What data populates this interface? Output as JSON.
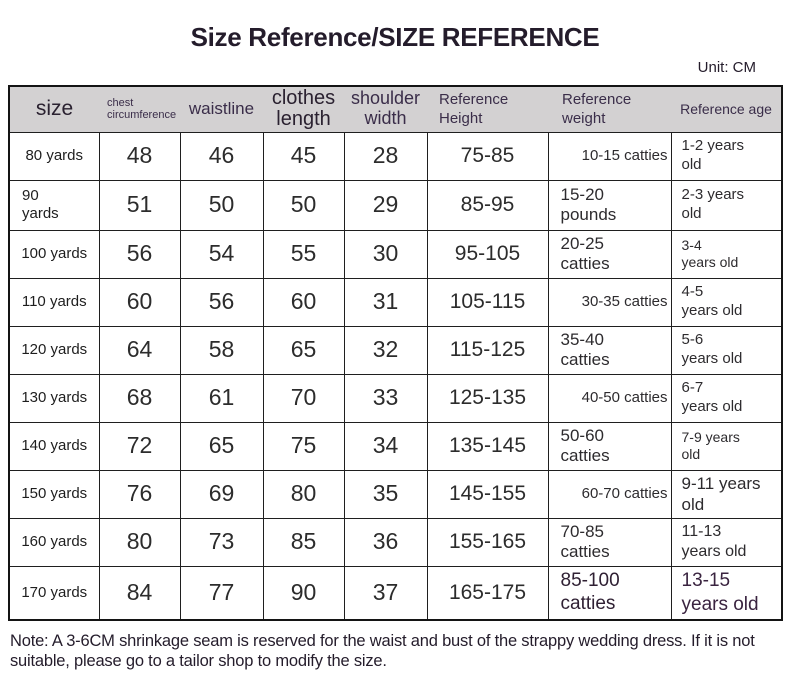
{
  "title": "Size Reference/SIZE REFERENCE",
  "unit_label": "Unit: CM",
  "table": {
    "columns": [
      {
        "key": "size",
        "label": "size"
      },
      {
        "key": "chest",
        "label": "chest\ncircumference"
      },
      {
        "key": "waistline",
        "label": "waistline"
      },
      {
        "key": "clothes-length",
        "label": "clothes\nlength"
      },
      {
        "key": "shoulder-width",
        "label": "shoulder\nwidth"
      },
      {
        "key": "ref-height",
        "label": "Reference\nHeight"
      },
      {
        "key": "ref-weight",
        "label": "Reference\nweight"
      },
      {
        "key": "ref-age",
        "label": "Reference age"
      }
    ],
    "rows": [
      [
        "80 yards",
        "48",
        "46",
        "45",
        "28",
        "75-85",
        "10-15 catties",
        "1-2 years\nold"
      ],
      [
        "90\nyards",
        "51",
        "50",
        "50",
        "29",
        "85-95",
        "15-20\npounds",
        "2-3 years\nold"
      ],
      [
        "100 yards",
        "56",
        "54",
        "55",
        "30",
        "95-105",
        "20-25\ncatties",
        "3-4\nyears old"
      ],
      [
        "110 yards",
        "60",
        "56",
        "60",
        "31",
        "105-115",
        "30-35 catties",
        "4-5\nyears old"
      ],
      [
        "120 yards",
        "64",
        "58",
        "65",
        "32",
        "115-125",
        "35-40\ncatties",
        "5-6\nyears old"
      ],
      [
        "130 yards",
        "68",
        "61",
        "70",
        "33",
        "125-135",
        "40-50 catties",
        "6-7\nyears old"
      ],
      [
        "140 yards",
        "72",
        "65",
        "75",
        "34",
        "135-145",
        "50-60\ncatties",
        "7-9 years\nold"
      ],
      [
        "150 yards",
        "76",
        "69",
        "80",
        "35",
        "145-155",
        "60-70 catties",
        "9-11 years\nold"
      ],
      [
        "160 yards",
        "80",
        "73",
        "85",
        "36",
        "155-165",
        "70-85\ncatties",
        "11-13\nyears old"
      ],
      [
        "170 yards",
        "84",
        "77",
        "90",
        "37",
        "165-175",
        "85-100\ncatties",
        "13-15\nyears old"
      ]
    ]
  },
  "note": "Note: A 3-6CM shrinkage seam is reserved for the waist and bust of the strappy wedding dress. If it is not suitable, please go to a tailor shop to modify the size."
}
